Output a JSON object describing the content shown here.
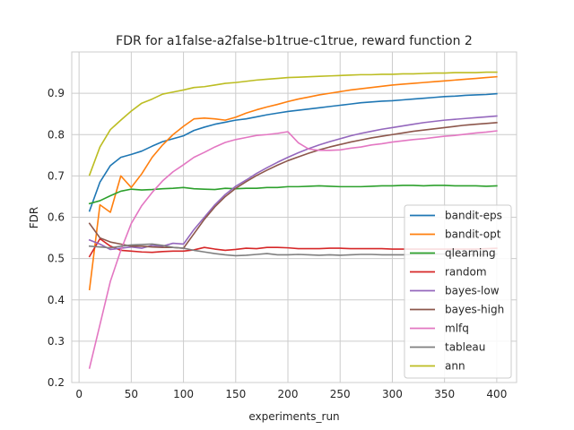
{
  "chart_data": {
    "type": "line",
    "title": "FDR for a1false-a2false-b1true-c1true, reward function 2",
    "xlabel": "experiments_run",
    "ylabel": "FDR",
    "xlim": [
      -7,
      419
    ],
    "ylim": [
      0.2,
      1.0
    ],
    "xticks": [
      0,
      50,
      100,
      150,
      200,
      250,
      300,
      350,
      400
    ],
    "yticks": [
      0.2,
      0.3,
      0.4,
      0.5,
      0.6,
      0.7,
      0.8,
      0.9
    ],
    "grid": true,
    "legend_position": "lower-right",
    "x": [
      10,
      20,
      30,
      40,
      50,
      60,
      70,
      80,
      90,
      100,
      110,
      120,
      130,
      140,
      150,
      160,
      170,
      180,
      190,
      200,
      210,
      220,
      230,
      240,
      250,
      260,
      270,
      280,
      290,
      300,
      310,
      320,
      330,
      340,
      350,
      360,
      370,
      380,
      390,
      400
    ],
    "series": [
      {
        "name": "bandit-eps",
        "color": "#1f77b4",
        "values": [
          0.615,
          0.685,
          0.725,
          0.745,
          0.752,
          0.76,
          0.772,
          0.783,
          0.79,
          0.797,
          0.81,
          0.818,
          0.825,
          0.83,
          0.835,
          0.838,
          0.843,
          0.848,
          0.852,
          0.856,
          0.859,
          0.862,
          0.865,
          0.868,
          0.871,
          0.874,
          0.877,
          0.879,
          0.881,
          0.882,
          0.884,
          0.886,
          0.888,
          0.89,
          0.892,
          0.893,
          0.895,
          0.896,
          0.897,
          0.899
        ]
      },
      {
        "name": "bandit-opt",
        "color": "#ff7f0e",
        "values": [
          0.425,
          0.63,
          0.612,
          0.7,
          0.672,
          0.705,
          0.745,
          0.775,
          0.8,
          0.82,
          0.838,
          0.84,
          0.838,
          0.835,
          0.842,
          0.852,
          0.86,
          0.867,
          0.873,
          0.88,
          0.886,
          0.891,
          0.896,
          0.9,
          0.904,
          0.908,
          0.911,
          0.914,
          0.917,
          0.92,
          0.922,
          0.924,
          0.926,
          0.928,
          0.93,
          0.932,
          0.934,
          0.936,
          0.938,
          0.94
        ]
      },
      {
        "name": "qlearning",
        "color": "#2ca02c",
        "values": [
          0.633,
          0.64,
          0.652,
          0.663,
          0.668,
          0.666,
          0.667,
          0.669,
          0.67,
          0.672,
          0.669,
          0.668,
          0.667,
          0.67,
          0.669,
          0.67,
          0.67,
          0.672,
          0.672,
          0.674,
          0.674,
          0.675,
          0.676,
          0.675,
          0.674,
          0.674,
          0.674,
          0.675,
          0.676,
          0.676,
          0.677,
          0.677,
          0.676,
          0.677,
          0.677,
          0.676,
          0.676,
          0.676,
          0.675,
          0.676
        ]
      },
      {
        "name": "random",
        "color": "#d62728",
        "values": [
          0.505,
          0.548,
          0.53,
          0.52,
          0.518,
          0.516,
          0.515,
          0.517,
          0.518,
          0.518,
          0.521,
          0.527,
          0.523,
          0.52,
          0.522,
          0.525,
          0.524,
          0.527,
          0.527,
          0.526,
          0.524,
          0.524,
          0.524,
          0.525,
          0.525,
          0.524,
          0.524,
          0.524,
          0.524,
          0.523,
          0.523,
          0.523,
          0.523,
          0.523,
          0.523,
          0.523,
          0.523,
          0.523,
          0.524,
          0.525
        ]
      },
      {
        "name": "bayes-low",
        "color": "#9467bd",
        "values": [
          0.545,
          0.535,
          0.522,
          0.525,
          0.528,
          0.525,
          0.532,
          0.53,
          0.537,
          0.535,
          0.57,
          0.6,
          0.63,
          0.655,
          0.675,
          0.69,
          0.706,
          0.72,
          0.733,
          0.745,
          0.756,
          0.766,
          0.775,
          0.783,
          0.79,
          0.797,
          0.803,
          0.808,
          0.813,
          0.817,
          0.821,
          0.825,
          0.829,
          0.832,
          0.835,
          0.837,
          0.839,
          0.841,
          0.843,
          0.845
        ]
      },
      {
        "name": "bayes-high",
        "color": "#8c564b",
        "values": [
          0.585,
          0.55,
          0.54,
          0.535,
          0.53,
          0.53,
          0.528,
          0.527,
          0.527,
          0.525,
          0.56,
          0.595,
          0.625,
          0.65,
          0.67,
          0.686,
          0.701,
          0.714,
          0.726,
          0.737,
          0.746,
          0.755,
          0.763,
          0.77,
          0.776,
          0.782,
          0.787,
          0.792,
          0.796,
          0.8,
          0.804,
          0.808,
          0.811,
          0.814,
          0.817,
          0.82,
          0.823,
          0.825,
          0.827,
          0.829
        ]
      },
      {
        "name": "mlfq",
        "color": "#e377c2",
        "values": [
          0.235,
          0.34,
          0.445,
          0.52,
          0.585,
          0.628,
          0.66,
          0.688,
          0.71,
          0.727,
          0.745,
          0.757,
          0.77,
          0.781,
          0.788,
          0.793,
          0.798,
          0.8,
          0.803,
          0.807,
          0.78,
          0.765,
          0.762,
          0.762,
          0.763,
          0.767,
          0.77,
          0.775,
          0.778,
          0.782,
          0.785,
          0.788,
          0.79,
          0.793,
          0.796,
          0.798,
          0.801,
          0.804,
          0.806,
          0.809
        ]
      },
      {
        "name": "tableau",
        "color": "#7f7f7f",
        "values": [
          0.53,
          0.528,
          0.526,
          0.53,
          0.533,
          0.534,
          0.535,
          0.532,
          0.527,
          0.525,
          0.52,
          0.516,
          0.512,
          0.509,
          0.507,
          0.508,
          0.51,
          0.512,
          0.509,
          0.509,
          0.51,
          0.509,
          0.508,
          0.509,
          0.508,
          0.509,
          0.51,
          0.51,
          0.509,
          0.509,
          0.509,
          0.51,
          0.51,
          0.511,
          0.511,
          0.511,
          0.51,
          0.51,
          0.51,
          0.511
        ]
      },
      {
        "name": "ann",
        "color": "#bcbd22",
        "values": [
          0.702,
          0.77,
          0.812,
          0.835,
          0.857,
          0.876,
          0.886,
          0.898,
          0.903,
          0.908,
          0.914,
          0.916,
          0.92,
          0.924,
          0.926,
          0.929,
          0.932,
          0.934,
          0.936,
          0.938,
          0.939,
          0.94,
          0.941,
          0.942,
          0.943,
          0.944,
          0.945,
          0.945,
          0.946,
          0.946,
          0.947,
          0.947,
          0.948,
          0.949,
          0.949,
          0.95,
          0.95,
          0.95,
          0.951,
          0.951
        ]
      }
    ]
  }
}
